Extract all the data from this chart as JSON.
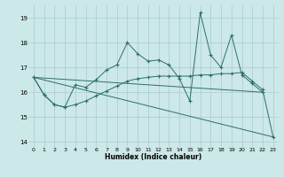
{
  "xlabel": "Humidex (Indice chaleur)",
  "xlim": [
    -0.5,
    23.5
  ],
  "ylim": [
    13.8,
    19.5
  ],
  "yticks": [
    14,
    15,
    16,
    17,
    18,
    19
  ],
  "xticks": [
    0,
    1,
    2,
    3,
    4,
    5,
    6,
    7,
    8,
    9,
    10,
    11,
    12,
    13,
    14,
    15,
    16,
    17,
    18,
    19,
    20,
    21,
    22,
    23
  ],
  "bg_color": "#cce8e8",
  "grid_color": "#aacccc",
  "line_color": "#2d7066",
  "line1_x": [
    0,
    1,
    2,
    3,
    4,
    5,
    6,
    7,
    8,
    9,
    10,
    11,
    12,
    13,
    14,
    15,
    16,
    17,
    18,
    19,
    20,
    21,
    22
  ],
  "line1_y": [
    16.6,
    15.9,
    15.5,
    15.4,
    16.3,
    16.2,
    16.5,
    16.9,
    17.1,
    18.0,
    17.55,
    17.25,
    17.3,
    17.1,
    16.55,
    15.65,
    19.2,
    17.5,
    17.0,
    18.3,
    16.7,
    16.35,
    16.0
  ],
  "line2_x": [
    0,
    1,
    2,
    3,
    4,
    5,
    6,
    7,
    8,
    9,
    10,
    11,
    12,
    13,
    14,
    15,
    16,
    17,
    18,
    19,
    20,
    21,
    22,
    23
  ],
  "line2_y": [
    16.6,
    15.9,
    15.5,
    15.4,
    15.5,
    15.65,
    15.85,
    16.05,
    16.25,
    16.45,
    16.55,
    16.6,
    16.65,
    16.65,
    16.65,
    16.65,
    16.7,
    16.7,
    16.75,
    16.75,
    16.8,
    16.45,
    16.1,
    14.2
  ],
  "line3_x": [
    0,
    23
  ],
  "line3_y": [
    16.6,
    14.2
  ],
  "line4_x": [
    0,
    22
  ],
  "line4_y": [
    16.6,
    16.0
  ]
}
